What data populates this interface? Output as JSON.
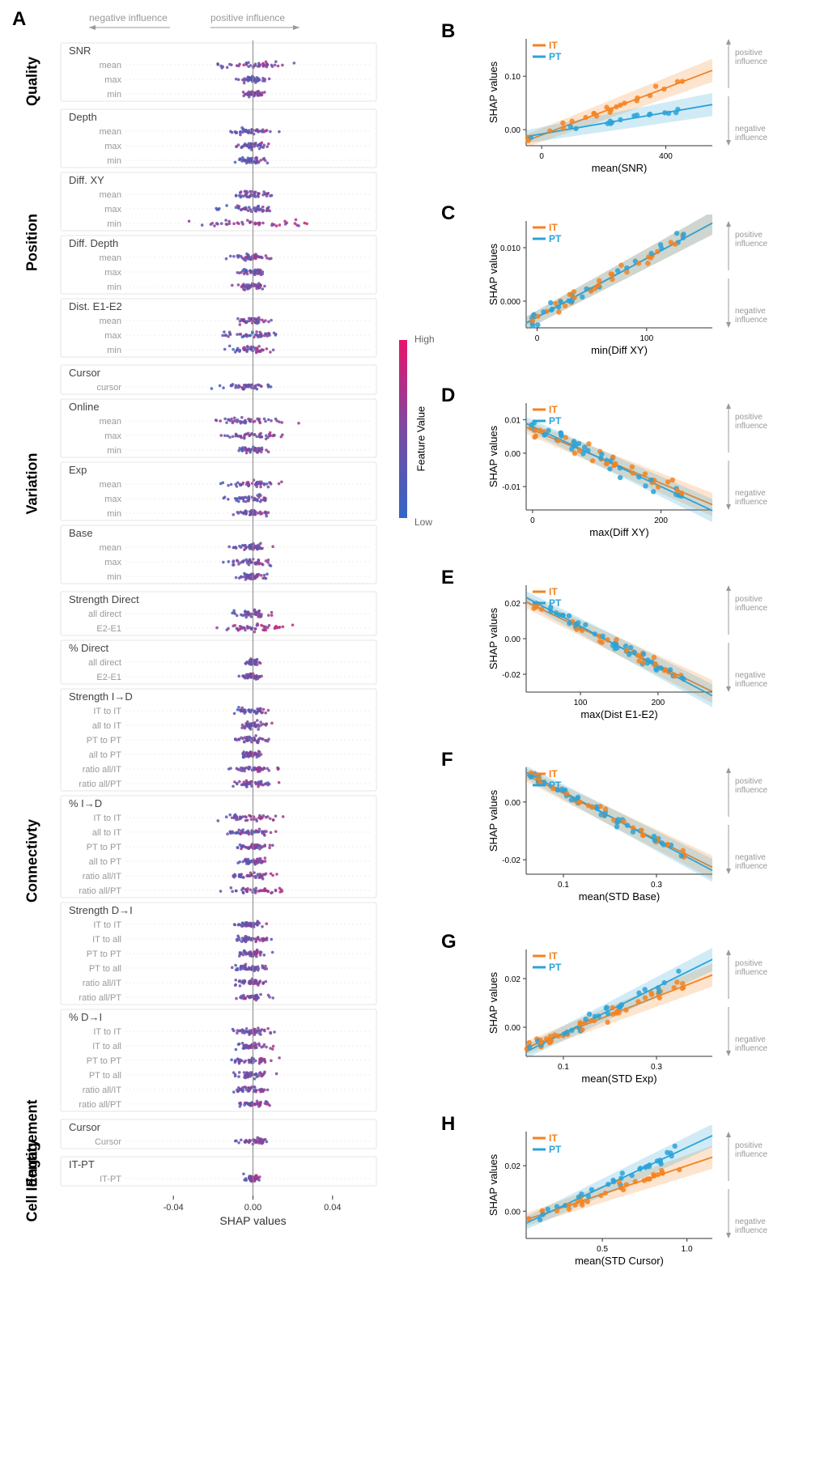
{
  "colors": {
    "it": "#f58220",
    "pt": "#2aa3d8",
    "high": "#e8156b",
    "low": "#3265c7",
    "mid": "#7a4aa0",
    "grid": "#dddddd",
    "text": "#333333",
    "light_text": "#888888",
    "arrow_text": "#999999",
    "bg": "#ffffff"
  },
  "panelA": {
    "label": "A",
    "influence_neg": "negative influence",
    "influence_pos": "positive influence",
    "xlabel": "SHAP values",
    "xticks": [
      "-0.04",
      "0.00",
      "0.04"
    ],
    "xrange": [
      -0.06,
      0.06
    ],
    "categories": [
      {
        "name": "Quality",
        "groups": [
          {
            "title": "SNR",
            "rows": [
              {
                "label": "mean",
                "spread": 0.7,
                "color_bias": 0.6
              },
              {
                "label": "max",
                "spread": 0.3,
                "color_bias": 0.3
              },
              {
                "label": "min",
                "spread": 0.2,
                "color_bias": 0.5
              }
            ]
          }
        ]
      },
      {
        "name": "Position",
        "groups": [
          {
            "title": "Depth",
            "rows": [
              {
                "label": "mean",
                "spread": 0.5,
                "color_bias": 0.4
              },
              {
                "label": "max",
                "spread": 0.3,
                "color_bias": 0.5
              },
              {
                "label": "min",
                "spread": 0.25,
                "color_bias": 0.3
              }
            ]
          },
          {
            "title": "Diff. XY",
            "rows": [
              {
                "label": "mean",
                "spread": 0.4,
                "color_bias": 0.5
              },
              {
                "label": "max",
                "spread": 0.5,
                "color_bias": 0.4
              },
              {
                "label": "min",
                "spread": 0.9,
                "color_bias": 0.7
              }
            ]
          },
          {
            "title": "Diff. Depth",
            "rows": [
              {
                "label": "mean",
                "spread": 0.4,
                "color_bias": 0.5
              },
              {
                "label": "max",
                "spread": 0.3,
                "color_bias": 0.4
              },
              {
                "label": "min",
                "spread": 0.35,
                "color_bias": 0.5
              }
            ]
          },
          {
            "title": "Dist. E1-E2",
            "rows": [
              {
                "label": "mean",
                "spread": 0.3,
                "color_bias": 0.5
              },
              {
                "label": "max",
                "spread": 0.6,
                "color_bias": 0.4
              },
              {
                "label": "min",
                "spread": 0.4,
                "color_bias": 0.5
              }
            ]
          }
        ]
      },
      {
        "name": "Variation",
        "groups": [
          {
            "title": "Cursor",
            "rows": [
              {
                "label": "cursor",
                "spread": 0.5,
                "color_bias": 0.3
              }
            ]
          },
          {
            "title": "Online",
            "rows": [
              {
                "label": "mean",
                "spread": 0.7,
                "color_bias": 0.5
              },
              {
                "label": "max",
                "spread": 0.6,
                "color_bias": 0.6
              },
              {
                "label": "min",
                "spread": 0.3,
                "color_bias": 0.4
              }
            ]
          },
          {
            "title": "Exp",
            "rows": [
              {
                "label": "mean",
                "spread": 0.5,
                "color_bias": 0.5
              },
              {
                "label": "max",
                "spread": 0.5,
                "color_bias": 0.4
              },
              {
                "label": "min",
                "spread": 0.3,
                "color_bias": 0.5
              }
            ]
          },
          {
            "title": "Base",
            "rows": [
              {
                "label": "mean",
                "spread": 0.4,
                "color_bias": 0.4
              },
              {
                "label": "max",
                "spread": 0.5,
                "color_bias": 0.5
              },
              {
                "label": "min",
                "spread": 0.3,
                "color_bias": 0.5
              }
            ]
          }
        ]
      },
      {
        "name": "Connectivty",
        "groups": [
          {
            "title": "Strength Direct",
            "rows": [
              {
                "label": "all direct",
                "spread": 0.4,
                "color_bias": 0.5
              },
              {
                "label": "E2-E1",
                "spread": 0.6,
                "color_bias": 0.7
              }
            ]
          },
          {
            "title": "% Direct",
            "rows": [
              {
                "label": "all direct",
                "spread": 0.15,
                "color_bias": 0.5
              },
              {
                "label": "E2-E1",
                "spread": 0.2,
                "color_bias": 0.5
              }
            ]
          },
          {
            "title": "Strength I→D",
            "rows": [
              {
                "label": "IT to IT",
                "spread": 0.35,
                "color_bias": 0.4
              },
              {
                "label": "all to IT",
                "spread": 0.3,
                "color_bias": 0.5
              },
              {
                "label": "PT to PT",
                "spread": 0.3,
                "color_bias": 0.4
              },
              {
                "label": "all to PT",
                "spread": 0.25,
                "color_bias": 0.5
              },
              {
                "label": "ratio all/IT",
                "spread": 0.4,
                "color_bias": 0.6
              },
              {
                "label": "ratio all/PT",
                "spread": 0.4,
                "color_bias": 0.5
              }
            ]
          },
          {
            "title": "% I→D",
            "rows": [
              {
                "label": "IT to IT",
                "spread": 0.5,
                "color_bias": 0.5
              },
              {
                "label": "all to IT",
                "spread": 0.5,
                "color_bias": 0.4
              },
              {
                "label": "PT to PT",
                "spread": 0.3,
                "color_bias": 0.5
              },
              {
                "label": "all to PT",
                "spread": 0.25,
                "color_bias": 0.5
              },
              {
                "label": "ratio all/IT",
                "spread": 0.4,
                "color_bias": 0.5
              },
              {
                "label": "ratio all/PT",
                "spread": 0.5,
                "color_bias": 0.6
              }
            ]
          },
          {
            "title": "Strength D→I",
            "rows": [
              {
                "label": "IT to IT",
                "spread": 0.3,
                "color_bias": 0.4
              },
              {
                "label": "IT to all",
                "spread": 0.35,
                "color_bias": 0.5
              },
              {
                "label": "PT to PT",
                "spread": 0.3,
                "color_bias": 0.5
              },
              {
                "label": "PT to all",
                "spread": 0.3,
                "color_bias": 0.4
              },
              {
                "label": "ratio all/IT",
                "spread": 0.35,
                "color_bias": 0.5
              },
              {
                "label": "ratio all/PT",
                "spread": 0.35,
                "color_bias": 0.5
              }
            ]
          },
          {
            "title": "% D→I",
            "rows": [
              {
                "label": "IT to IT",
                "spread": 0.4,
                "color_bias": 0.5
              },
              {
                "label": "IT to all",
                "spread": 0.35,
                "color_bias": 0.5
              },
              {
                "label": "PT to PT",
                "spread": 0.4,
                "color_bias": 0.5
              },
              {
                "label": "PT to all",
                "spread": 0.35,
                "color_bias": 0.4
              },
              {
                "label": "ratio all/IT",
                "spread": 0.4,
                "color_bias": 0.5
              },
              {
                "label": "ratio all/PT",
                "spread": 0.35,
                "color_bias": 0.5
              }
            ]
          }
        ]
      },
      {
        "name": "Engagement",
        "groups": [
          {
            "title": "Cursor",
            "rows": [
              {
                "label": "Cursor",
                "spread": 0.3,
                "color_bias": 0.5
              }
            ]
          }
        ]
      },
      {
        "name": "Cell Identity",
        "groups": [
          {
            "title": "IT-PT",
            "rows": [
              {
                "label": "IT-PT",
                "spread": 0.2,
                "color_bias": 0.5
              }
            ]
          }
        ]
      }
    ]
  },
  "colorbar": {
    "label": "Feature Value",
    "high": "High",
    "low": "Low"
  },
  "scatter_panels": [
    {
      "id": "B",
      "xlabel": "mean(SNR)",
      "ylabel": "SHAP values",
      "xticks": [
        "0",
        "400"
      ],
      "yticks": [
        "0.00",
        "0.10"
      ],
      "xrange": [
        -50,
        550
      ],
      "yrange": [
        -0.03,
        0.17
      ],
      "slope_it": 0.00022,
      "int_it": -0.01,
      "slope_pt": 0.0001,
      "int_pt": -0.008,
      "n": 40,
      "noise": 0.015
    },
    {
      "id": "C",
      "xlabel": "min(Diff XY)",
      "ylabel": "SHAP values",
      "xticks": [
        "0",
        "100"
      ],
      "yticks": [
        "0.000",
        "0.010"
      ],
      "xrange": [
        -10,
        160
      ],
      "yrange": [
        -0.005,
        0.015
      ],
      "slope_it": 0.00011,
      "int_it": -0.003,
      "slope_pt": 0.00011,
      "int_pt": -0.003,
      "n": 60,
      "noise": 0.002
    },
    {
      "id": "D",
      "xlabel": "max(Diff XY)",
      "ylabel": "SHAP values",
      "xticks": [
        "0",
        "200"
      ],
      "yticks": [
        "-0.01",
        "0.00",
        "0.01"
      ],
      "xrange": [
        -10,
        280
      ],
      "yrange": [
        -0.017,
        0.015
      ],
      "slope_it": -8e-05,
      "int_it": 0.007,
      "slope_pt": -9e-05,
      "int_pt": 0.008,
      "n": 70,
      "noise": 0.004
    },
    {
      "id": "E",
      "xlabel": "max(Dist E1-E2)",
      "ylabel": "SHAP values",
      "xticks": [
        "100",
        "200"
      ],
      "yticks": [
        "-0.02",
        "0.00",
        "0.02"
      ],
      "xrange": [
        30,
        270
      ],
      "yrange": [
        -0.03,
        0.03
      ],
      "slope_it": -0.00021,
      "int_it": 0.027,
      "slope_pt": -0.00023,
      "int_pt": 0.03,
      "n": 70,
      "noise": 0.006
    },
    {
      "id": "F",
      "xlabel": "mean(STD Base)",
      "ylabel": "SHAP values",
      "xticks": [
        "0.1",
        "0.3"
      ],
      "yticks": [
        "-0.02",
        "0.00"
      ],
      "xrange": [
        0.02,
        0.42
      ],
      "yrange": [
        -0.025,
        0.012
      ],
      "slope_it": -0.08,
      "int_it": 0.011,
      "slope_pt": -0.085,
      "int_pt": 0.012,
      "n": 70,
      "noise": 0.003
    },
    {
      "id": "G",
      "xlabel": "mean(STD Exp)",
      "ylabel": "SHAP values",
      "xticks": [
        "0.1",
        "0.3"
      ],
      "yticks": [
        "0.00",
        "0.02"
      ],
      "xrange": [
        0.02,
        0.42
      ],
      "yrange": [
        -0.012,
        0.032
      ],
      "slope_it": 0.075,
      "int_it": -0.01,
      "slope_pt": 0.095,
      "int_pt": -0.012,
      "n": 70,
      "noise": 0.004
    },
    {
      "id": "H",
      "xlabel": "mean(STD Cursor)",
      "ylabel": "SHAP values",
      "xticks": [
        "0.5",
        "1.0"
      ],
      "yticks": [
        "0.00",
        "0.02"
      ],
      "xrange": [
        0.05,
        1.15
      ],
      "yrange": [
        -0.012,
        0.035
      ],
      "slope_it": 0.025,
      "int_it": -0.005,
      "slope_pt": 0.035,
      "int_pt": -0.007,
      "n": 60,
      "noise": 0.004
    }
  ],
  "legend": {
    "it": "IT",
    "pt": "PT"
  },
  "side_labels": {
    "pos": "positive\ninfluence",
    "neg": "negative\ninfluence"
  }
}
